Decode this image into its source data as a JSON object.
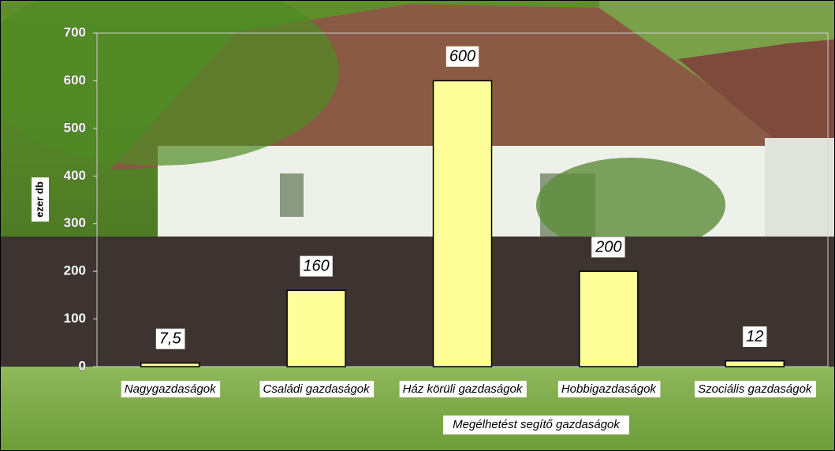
{
  "chart_data": {
    "type": "bar",
    "x_label": "Megélhetést segítő gazdaságok",
    "y_label": "ezer db",
    "categories": [
      "Nagygazdaságok",
      "Családi gazdaságok",
      "Ház körüli gazdaságok",
      "Hobbigazdaságok",
      "Szociális gazdaságok"
    ],
    "values": [
      7.5,
      160,
      600,
      200,
      12
    ],
    "value_labels": [
      "7,5",
      "160",
      "600",
      "200",
      "12"
    ],
    "color": "#ffff99",
    "ylim": [
      0,
      700
    ],
    "yticks": [
      0,
      100,
      200,
      300,
      400,
      500,
      600,
      700
    ]
  }
}
